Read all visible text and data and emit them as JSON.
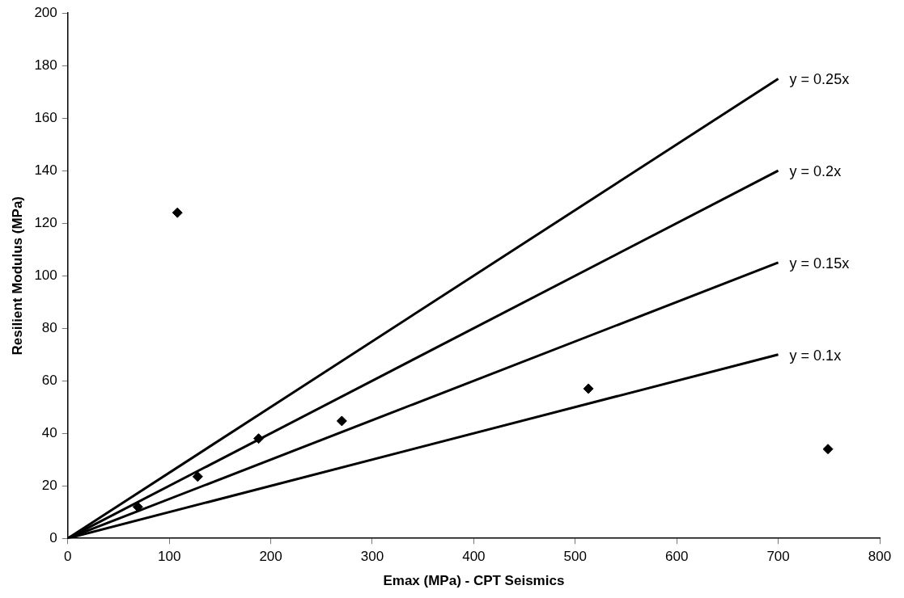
{
  "chart_data": {
    "type": "scatter",
    "xlabel": "Emax (MPa) - CPT Seismics",
    "ylabel": "Resilient Modulus (MPa)",
    "series": [
      {
        "color": "#000000",
        "marker": "diamond",
        "x": [
          69,
          108,
          128,
          188,
          270,
          513,
          749
        ],
        "values": [
          12,
          124,
          23.5,
          38,
          44.7,
          57,
          34
        ]
      },
      {
        "type": "line",
        "name": "y = 0.25x",
        "color": "#000000",
        "marker": "none",
        "x": [
          0,
          700
        ],
        "values": [
          0,
          175
        ]
      },
      {
        "type": "line",
        "name": "y = 0.2x",
        "color": "#000000",
        "marker": "none",
        "x": [
          0,
          700
        ],
        "values": [
          0,
          140
        ]
      },
      {
        "type": "line",
        "name": "y = 0.15x",
        "color": "#000000",
        "marker": "none",
        "x": [
          0,
          700
        ],
        "values": [
          0,
          105
        ]
      },
      {
        "type": "line",
        "name": "y = 0.1x",
        "color": "#000000",
        "marker": "none",
        "x": [
          0,
          700
        ],
        "values": [
          0,
          70
        ]
      }
    ],
    "xlim": [
      0,
      800
    ],
    "xticks": [
      0,
      100,
      200,
      300,
      400,
      500,
      600,
      700,
      800
    ],
    "ylim": [
      0,
      200
    ],
    "yticks": [
      0,
      20,
      40,
      60,
      80,
      100,
      120,
      140,
      160,
      180,
      200
    ],
    "grid": false,
    "legend": false
  }
}
